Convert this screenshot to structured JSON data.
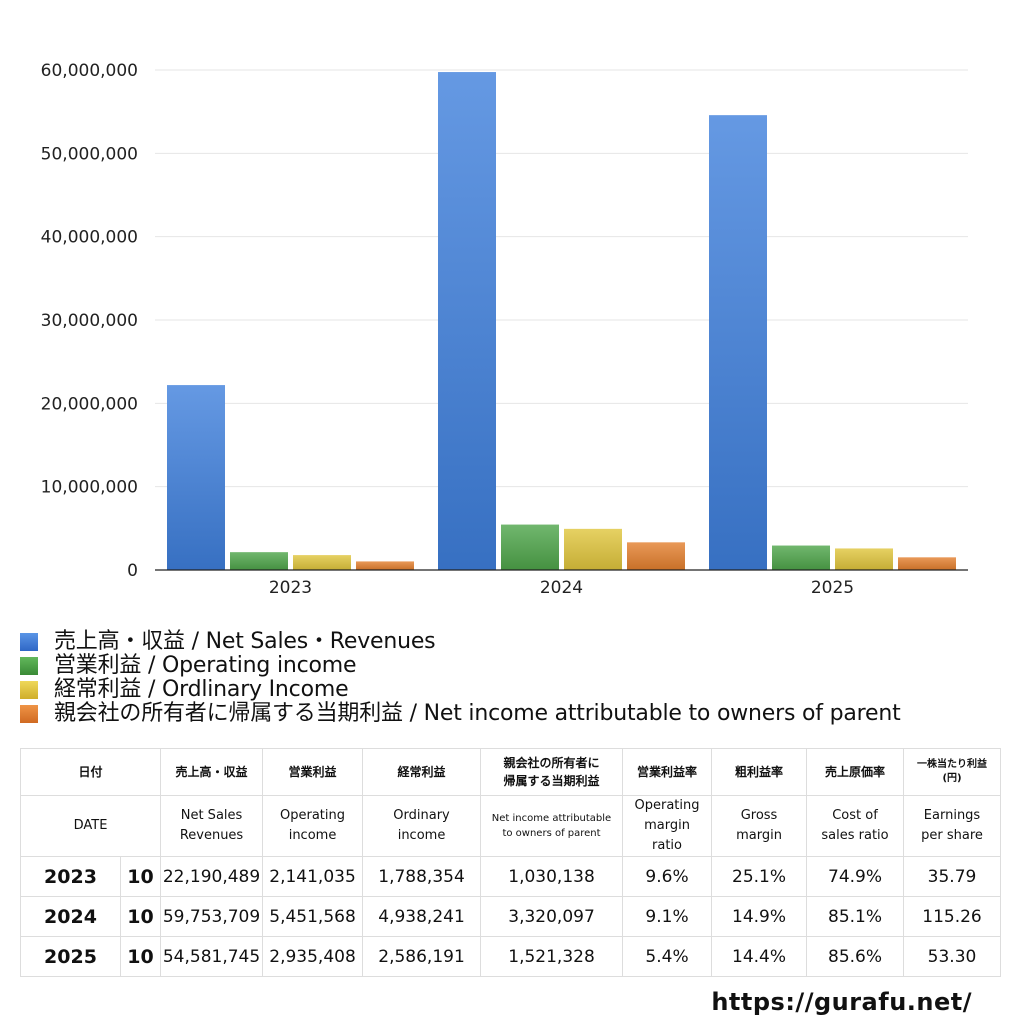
{
  "chart_data": {
    "type": "bar",
    "categories": [
      "2023",
      "2024",
      "2025"
    ],
    "series": [
      {
        "name": "売上高・収益 / Net Sales・Revenues",
        "color": "#3f7fdc",
        "values": [
          22190489,
          59753709,
          54581745
        ]
      },
      {
        "name": "営業利益 / Operating income",
        "color": "#4ea54a",
        "values": [
          2141035,
          5451568,
          2935408
        ]
      },
      {
        "name": "経常利益 / Ordlinary Income",
        "color": "#e0c53c",
        "values": [
          1788354,
          4938241,
          2586191
        ]
      },
      {
        "name": "親会社の所有者に帰属する当期利益 / Net income attributable to owners of parent",
        "color": "#e37f2e",
        "values": [
          1030138,
          3320097,
          1521328
        ]
      }
    ],
    "ylim": [
      0,
      60000000
    ],
    "yticks": [
      "0",
      "10,000,000",
      "20,000,000",
      "30,000,000",
      "40,000,000",
      "50,000,000",
      "60,000,000"
    ],
    "grid": true,
    "legend_position": "bottom"
  },
  "table": {
    "header_jp": {
      "date": "日付",
      "sales": "売上高・収益",
      "op": "営業利益",
      "ord": "経常利益",
      "net_line1": "親会社の所有者に",
      "net_line2": "帰属する当期利益",
      "opm": "営業利益率",
      "gm": "粗利益率",
      "cost": "売上原価率",
      "eps_line1": "一株当たり利益",
      "eps_line2": "(円)"
    },
    "header_en": {
      "date": "DATE",
      "sales_line1": "Net Sales",
      "sales_line2": "Revenues",
      "op_line1": "Operating",
      "op_line2": "income",
      "ord_line1": "Ordinary",
      "ord_line2": "income",
      "net_line1": "Net income attributable",
      "net_line2": "to owners of parent",
      "opm_line1": "Operating",
      "opm_line2": "margin",
      "opm_line3": "ratio",
      "gm_line1": "Gross",
      "gm_line2": "margin",
      "cost_line1": "Cost of",
      "cost_line2": "sales ratio",
      "eps_line1": "Earnings",
      "eps_line2": "per share"
    },
    "rows": [
      {
        "year": "2023",
        "month": "10",
        "sales": "22,190,489",
        "op": "2,141,035",
        "ord": "1,788,354",
        "net": "1,030,138",
        "opm": "9.6%",
        "gm": "25.1%",
        "cost": "74.9%",
        "eps": "35.79"
      },
      {
        "year": "2024",
        "month": "10",
        "sales": "59,753,709",
        "op": "5,451,568",
        "ord": "4,938,241",
        "net": "3,320,097",
        "opm": "9.1%",
        "gm": "14.9%",
        "cost": "85.1%",
        "eps": "115.26"
      },
      {
        "year": "2025",
        "month": "10",
        "sales": "54,581,745",
        "op": "2,935,408",
        "ord": "2,586,191",
        "net": "1,521,328",
        "opm": "5.4%",
        "gm": "14.4%",
        "cost": "85.6%",
        "eps": "53.30"
      }
    ]
  },
  "footer": {
    "url": "https://gurafu.net/"
  }
}
